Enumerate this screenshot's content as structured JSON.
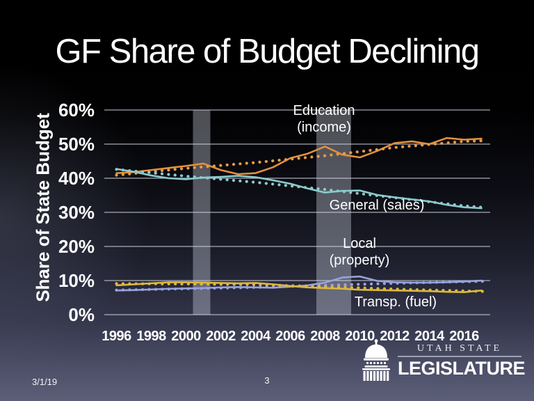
{
  "slide": {
    "title": "GF Share of Budget Declining",
    "footer": {
      "date": "3/1/19",
      "page_number": "3"
    },
    "logo": {
      "icon": "capitol-dome-icon",
      "org_line1": "UTAH STATE",
      "org_line2": "LEGISLATURE"
    }
  },
  "chart_data": {
    "type": "line",
    "ylabel": "Share of State Budget",
    "xlabel": "",
    "ylim": [
      0,
      60
    ],
    "xlim": [
      1995.3,
      2017.5
    ],
    "grid": "horizontal",
    "yticks": {
      "values": [
        0,
        10,
        20,
        30,
        40,
        50,
        60
      ],
      "labels": [
        "0%",
        "10%",
        "20%",
        "30%",
        "40%",
        "50%",
        "60%"
      ]
    },
    "xticks": {
      "values": [
        1996,
        1998,
        2000,
        2002,
        2004,
        2006,
        2008,
        2010,
        2012,
        2014,
        2016
      ],
      "labels": [
        "1996",
        "1998",
        "2000",
        "2002",
        "2004",
        "2006",
        "2008",
        "2010",
        "2012",
        "2014",
        "2016"
      ]
    },
    "x_years": [
      1996,
      1997,
      1998,
      1999,
      2000,
      2001,
      2002,
      2003,
      2004,
      2005,
      2006,
      2007,
      2008,
      2009,
      2010,
      2011,
      2012,
      2013,
      2014,
      2015,
      2016,
      2017
    ],
    "shaded_bands": [
      {
        "from": 2000.4,
        "to": 2001.4
      },
      {
        "from": 2007.5,
        "to": 2009.5
      }
    ],
    "series": [
      {
        "name": "Education (income)",
        "style": "solid",
        "color": "#E0903E",
        "values": [
          41.5,
          41.8,
          42.4,
          43.0,
          43.6,
          44.3,
          42.4,
          41.2,
          41.5,
          43.2,
          45.9,
          47.2,
          49.3,
          46.9,
          46.1,
          48.0,
          50.3,
          50.8,
          50.0,
          51.8,
          51.3,
          51.6
        ]
      },
      {
        "name": "Education (income) trend",
        "style": "dotted",
        "color": "#E79A47",
        "points": [
          [
            1996,
            40.9
          ],
          [
            2000,
            42.9
          ],
          [
            2004,
            44.6
          ],
          [
            2008,
            46.6
          ],
          [
            2012,
            49.0
          ],
          [
            2016,
            50.8
          ],
          [
            2017.2,
            51.0
          ]
        ]
      },
      {
        "name": "General (sales)",
        "style": "solid",
        "color": "#8BCBCD",
        "values": [
          42.7,
          41.9,
          40.8,
          40.0,
          39.7,
          40.2,
          40.4,
          40.7,
          40.3,
          39.4,
          38.4,
          37.0,
          35.8,
          36.3,
          36.4,
          35.1,
          34.4,
          33.8,
          33.2,
          32.2,
          31.5,
          31.2
        ]
      },
      {
        "name": "General (sales) trend",
        "style": "dotted",
        "color": "#8BCBCD",
        "points": [
          [
            1996,
            42.6
          ],
          [
            2000,
            40.6
          ],
          [
            2004,
            38.8
          ],
          [
            2008,
            36.7
          ],
          [
            2012,
            34.3
          ],
          [
            2016,
            31.9
          ],
          [
            2017.2,
            31.4
          ]
        ]
      },
      {
        "name": "Local (property)",
        "style": "solid",
        "color": "#98A3DF",
        "values": [
          7.1,
          7.2,
          7.4,
          7.6,
          7.7,
          7.8,
          8.0,
          8.1,
          8.0,
          7.9,
          8.2,
          8.6,
          9.4,
          10.9,
          11.2,
          9.9,
          9.5,
          9.4,
          9.4,
          9.5,
          9.7,
          10.0
        ]
      },
      {
        "name": "Local (property) trend",
        "style": "dotted",
        "color": "#98A3DF",
        "points": [
          [
            1996,
            7.2
          ],
          [
            2000,
            7.6
          ],
          [
            2004,
            8.0
          ],
          [
            2008,
            8.6
          ],
          [
            2012,
            9.2
          ],
          [
            2017.2,
            9.8
          ]
        ]
      },
      {
        "name": "Transp. (fuel)",
        "style": "solid",
        "color": "#DDB840",
        "values": [
          8.6,
          8.9,
          9.2,
          9.5,
          9.5,
          9.4,
          9.3,
          9.2,
          9.3,
          8.9,
          8.4,
          8.0,
          7.8,
          7.6,
          7.3,
          7.2,
          7.1,
          7.0,
          6.9,
          6.7,
          6.6,
          7.1
        ]
      },
      {
        "name": "Transp. (fuel) trend",
        "style": "dotted",
        "color": "#DDB840",
        "points": [
          [
            1996,
            9.1
          ],
          [
            2000,
            9.0
          ],
          [
            2004,
            8.8
          ],
          [
            2008,
            8.2
          ],
          [
            2012,
            7.5
          ],
          [
            2017.2,
            6.8
          ]
        ]
      }
    ],
    "annotations": [
      {
        "id": "education",
        "line1": "Education",
        "line2": "(income)"
      },
      {
        "id": "general",
        "line1": "General (sales)",
        "line2": ""
      },
      {
        "id": "local",
        "line1": "Local",
        "line2": "(property)"
      },
      {
        "id": "transp",
        "line1": "Transp. (fuel)",
        "line2": ""
      }
    ],
    "colors": {
      "education": "#E0903E",
      "general": "#8BCBCD",
      "local": "#98A3DF",
      "transp": "#DDB840",
      "gridline": "#CDD1DE",
      "recession_band": "#DCE2F0"
    }
  }
}
